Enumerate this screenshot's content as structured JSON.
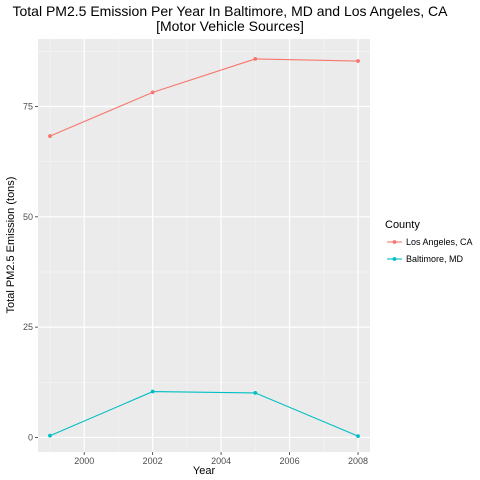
{
  "chart_data": {
    "type": "line",
    "title_line1": "Total PM2.5 Emission Per Year In Baltimore, MD and Los Angeles, CA",
    "title_line2": "[Motor Vehicle Sources]",
    "xlabel": "Year",
    "ylabel": "Total PM2.5 Emission (tons)",
    "x": [
      1999,
      2002,
      2005,
      2008
    ],
    "xlim": [
      1998.65,
      2008.35
    ],
    "ylim": [
      -3.3,
      90.3
    ],
    "xticks": [
      2000,
      2002,
      2004,
      2006,
      2008
    ],
    "yticks": [
      0,
      25,
      50,
      75
    ],
    "grid": true,
    "legend_title": "County",
    "legend_position": "right",
    "series": [
      {
        "name": "Los Angeles, CA",
        "color": "#F8766D",
        "values": [
          68.3,
          78.2,
          85.8,
          85.3
        ]
      },
      {
        "name": "Baltimore, MD",
        "color": "#00BFC4",
        "values": [
          0.4,
          10.4,
          10.1,
          0.3
        ]
      }
    ]
  }
}
